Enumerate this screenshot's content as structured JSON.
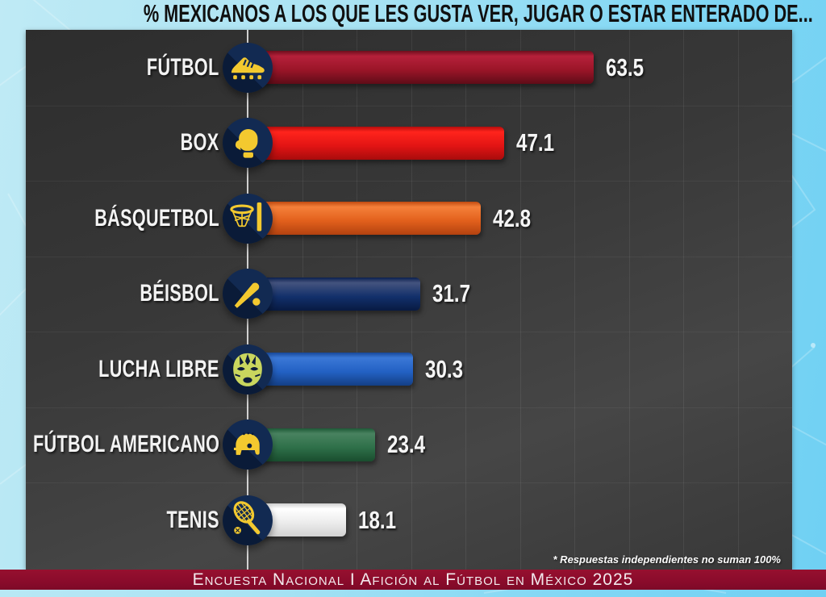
{
  "title": "% MEXICANOS A LOS QUE LES GUSTA VER, JUGAR O ESTAR ENTERADO DE...",
  "footnote": "* Respuestas independientes no suman 100%",
  "footer": "Encuesta Nacional I Afición al Fútbol en México 2025",
  "chart_data": {
    "type": "bar",
    "orientation": "horizontal",
    "title": "% MEXICANOS A LOS QUE LES GUSTA VER, JUGAR O ESTAR ENTERADO DE...",
    "categories": [
      "FÚTBOL",
      "BOX",
      "BÁSQUETBOL",
      "BÉISBOL",
      "LUCHA LIBRE",
      "FÚTBOL AMERICANO",
      "TENIS"
    ],
    "values": [
      63.5,
      47.1,
      42.8,
      31.7,
      30.3,
      23.4,
      18.1
    ],
    "value_labels": [
      "63.5",
      "47.1",
      "42.8",
      "31.7",
      "30.3",
      "23.4",
      "18.1"
    ],
    "xlim": [
      0,
      100
    ],
    "grid": true,
    "legend": false,
    "icons": [
      "soccer-cleat",
      "boxing-glove",
      "basketball-hoop",
      "baseball-bat",
      "lucha-mask",
      "football-helmet",
      "tennis-racket"
    ],
    "bar_gradients": [
      [
        "#6e0e1c",
        "#b5203a",
        "#9a1528",
        "#5f0c18"
      ],
      [
        "#b40d0d",
        "#ff241c",
        "#e21414",
        "#a80c0c"
      ],
      [
        "#c14a10",
        "#f5803a",
        "#e2601c",
        "#b34210"
      ],
      [
        "#0a1f4e",
        "#44537e",
        "#12306b",
        "#081a42"
      ],
      [
        "#174899",
        "#3b78d6",
        "#2361c4",
        "#143f85"
      ],
      [
        "#1e5a37",
        "#498260",
        "#2e7049",
        "#194d2e"
      ],
      [
        "#cfcfcf",
        "#ffffff",
        "#ececec",
        "#d2d2d2"
      ]
    ]
  },
  "colors": {
    "icon_circle_navy": "#122a52",
    "icon_glyph_yellow": "#f3c92f",
    "lucha_mask_green": "#c9d65e",
    "panel_gray": "#3a3a3a",
    "footer_band_red": "#8a0b2b",
    "background_blue": "#8fdcf4",
    "title_black": "#101010",
    "text_white": "#f3f3f3"
  }
}
